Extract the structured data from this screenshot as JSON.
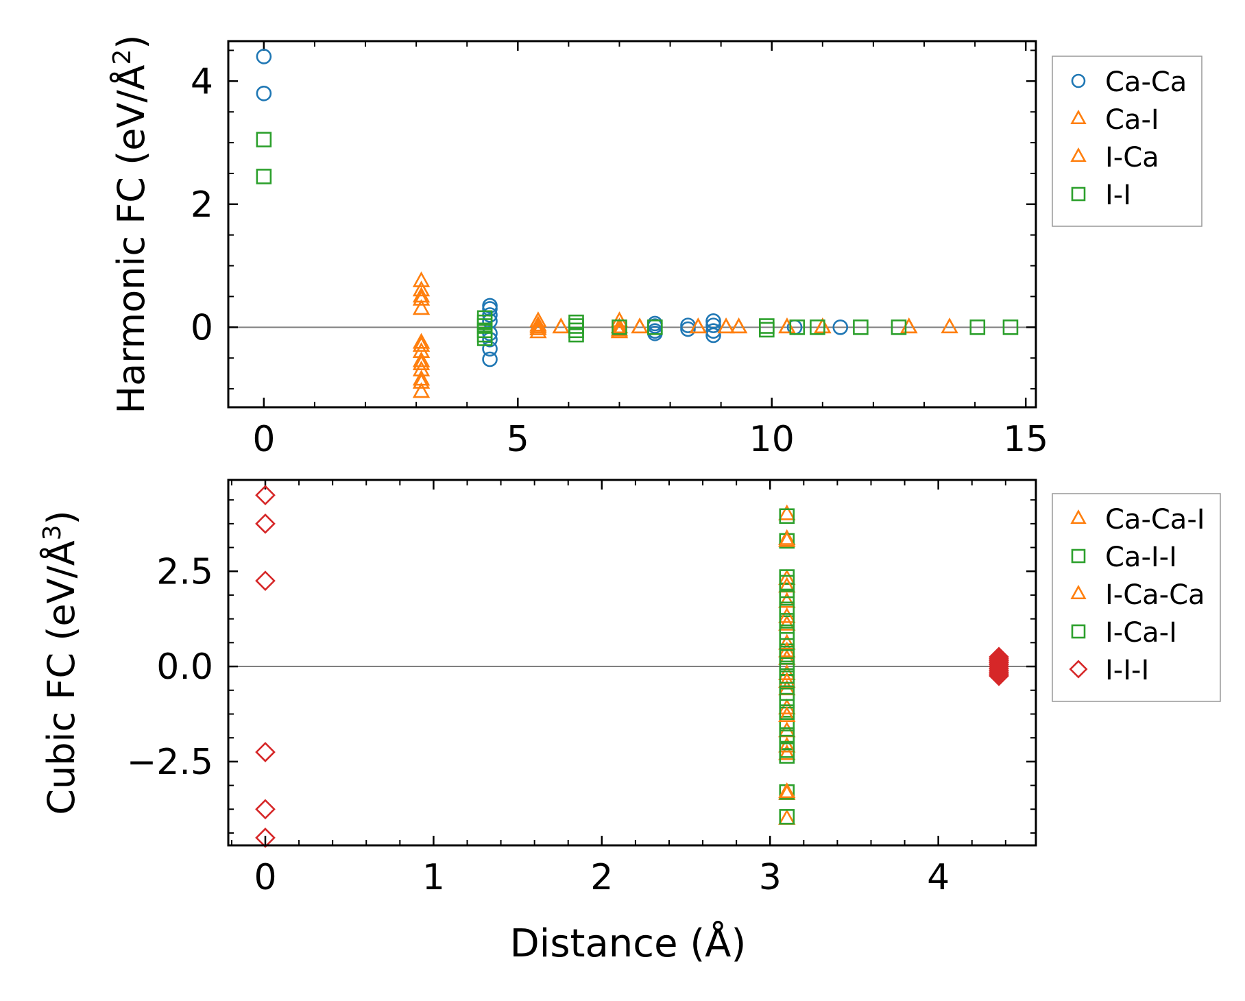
{
  "chart_data": [
    {
      "type": "scatter",
      "ylabel": "Harmonic FC (eV/Å",
      "ylabel_sup": "2",
      "ylabel_close": ")",
      "xlim": [
        -0.7,
        15.2
      ],
      "ylim": [
        -1.3,
        4.65
      ],
      "xticks": [
        0,
        5,
        10,
        15
      ],
      "xtick_labels": [
        "0",
        "5",
        "10",
        "15"
      ],
      "yticks": [
        0,
        2,
        4
      ],
      "ytick_labels": [
        "0",
        "2",
        "4"
      ],
      "hline": 0,
      "legend_position": "right, outside axes",
      "series": [
        {
          "name": "Ca-Ca",
          "marker": "circle",
          "color": "#1f77b4",
          "x": [
            0,
            0,
            4.45,
            4.45,
            4.45,
            4.45,
            4.45,
            4.45,
            4.45,
            4.45,
            7.7,
            7.7,
            7.7,
            7.7,
            8.35,
            8.35,
            8.85,
            8.85,
            8.85,
            8.85,
            10.45,
            11.35
          ],
          "y": [
            4.4,
            3.8,
            0.35,
            0.3,
            0.2,
            0.1,
            -0.1,
            -0.2,
            -0.35,
            -0.52,
            0.06,
            0.02,
            -0.06,
            -0.1,
            0.03,
            -0.03,
            0.1,
            0.03,
            -0.06,
            -0.13,
            0.0,
            0.0
          ]
        },
        {
          "name": "Ca-I",
          "marker": "triangle",
          "color": "#ff7f0e",
          "x": [
            3.1,
            3.1,
            3.1,
            3.1,
            3.1,
            3.1,
            3.1,
            3.1,
            3.1,
            3.1,
            5.4,
            5.4,
            5.4,
            5.4,
            5.85,
            7.0,
            7.0,
            7.0,
            7.4,
            8.55,
            9.1,
            9.35,
            10.3,
            11.0,
            12.7,
            13.5
          ],
          "y": [
            0.75,
            0.6,
            0.45,
            0.3,
            -0.25,
            -0.4,
            -0.55,
            -0.7,
            -0.85,
            -1.05,
            0.1,
            0.03,
            -0.03,
            -0.08,
            0.0,
            0.1,
            0.0,
            -0.08,
            0.0,
            0.0,
            0.0,
            0.0,
            0.0,
            0.0,
            0.0,
            0.0
          ]
        },
        {
          "name": "I-Ca",
          "marker": "triangle",
          "color": "#ff7f0e",
          "x": [
            3.1,
            3.1,
            3.1,
            3.1,
            5.4,
            5.85,
            7.0,
            7.4,
            8.55,
            9.1,
            9.35,
            10.3,
            11.0,
            12.7
          ],
          "y": [
            0.5,
            -0.3,
            -0.6,
            -0.9,
            0.0,
            0.0,
            -0.05,
            0.0,
            0.0,
            0.0,
            0.0,
            0.0,
            0.0,
            0.0
          ]
        },
        {
          "name": "I-I",
          "marker": "square",
          "color": "#2ca02c",
          "x": [
            0,
            0,
            4.35,
            4.35,
            4.35,
            4.35,
            4.35,
            4.35,
            6.15,
            6.15,
            6.15,
            6.15,
            7.0,
            7.7,
            9.9,
            9.9,
            10.5,
            10.9,
            11.75,
            12.5,
            14.05,
            14.7
          ],
          "y": [
            3.05,
            2.45,
            0.15,
            0.08,
            0.02,
            -0.05,
            -0.12,
            -0.18,
            0.08,
            0.02,
            -0.05,
            -0.12,
            0.0,
            0.0,
            0.02,
            -0.04,
            0.0,
            0.0,
            0.0,
            0.0,
            0.0,
            0.0
          ]
        }
      ]
    },
    {
      "type": "scatter",
      "xlabel": "Distance (Å)",
      "ylabel": "Cubic FC (eV/Å",
      "ylabel_sup": "3",
      "ylabel_close": ")",
      "xlim": [
        -0.22,
        4.58
      ],
      "ylim": [
        -4.7,
        4.9
      ],
      "xticks": [
        0,
        1,
        2,
        3,
        4
      ],
      "xtick_labels": [
        "0",
        "1",
        "2",
        "3",
        "4"
      ],
      "yticks": [
        -2.5,
        0.0,
        2.5
      ],
      "ytick_labels": [
        "−2.5",
        "0.0",
        "2.5"
      ],
      "hline": 0,
      "legend_position": "right, outside axes",
      "series": [
        {
          "name": "Ca-Ca-I",
          "marker": "triangle",
          "color": "#ff7f0e",
          "x": [
            3.1,
            3.1,
            3.1,
            3.1,
            3.1,
            3.1,
            3.1,
            3.1,
            3.1,
            3.1,
            3.1,
            3.1,
            3.1,
            3.1
          ],
          "y": [
            4.0,
            3.35,
            2.3,
            1.7,
            1.1,
            0.6,
            0.2,
            -0.2,
            -0.6,
            -1.1,
            -1.7,
            -2.3,
            -3.35,
            -4.0
          ]
        },
        {
          "name": "Ca-I-I",
          "marker": "square",
          "color": "#2ca02c",
          "x": [
            3.1,
            3.1,
            3.1,
            3.1,
            3.1,
            3.1,
            3.1,
            3.1,
            3.1,
            3.1,
            3.1,
            3.1,
            3.1,
            3.1,
            3.1,
            3.1
          ],
          "y": [
            3.95,
            3.3,
            2.35,
            2.0,
            1.5,
            0.9,
            0.4,
            0.05,
            -0.05,
            -0.4,
            -0.9,
            -1.5,
            -2.0,
            -2.35,
            -3.3,
            -3.95
          ]
        },
        {
          "name": "I-Ca-Ca",
          "marker": "triangle",
          "color": "#ff7f0e",
          "x": [
            3.1,
            3.1,
            3.1,
            3.1,
            3.1,
            3.1,
            3.1,
            3.1
          ],
          "y": [
            3.3,
            2.1,
            1.3,
            0.4,
            -0.4,
            -1.3,
            -2.1,
            -3.3
          ]
        },
        {
          "name": "I-Ca-I",
          "marker": "square",
          "color": "#2ca02c",
          "x": [
            3.1,
            3.1,
            3.1,
            3.1,
            3.1,
            3.1,
            3.1,
            3.1,
            3.1,
            3.1
          ],
          "y": [
            2.2,
            1.8,
            1.2,
            0.7,
            0.25,
            -0.25,
            -0.7,
            -1.2,
            -1.8,
            -2.2
          ]
        },
        {
          "name": "I-I-I",
          "marker": "diamond",
          "color": "#d62728",
          "x": [
            0,
            0,
            0,
            0,
            0,
            0,
            4.36,
            4.36,
            4.36,
            4.36,
            4.36,
            4.36,
            4.36,
            4.36,
            4.36,
            4.36,
            4.36
          ],
          "y": [
            4.5,
            3.75,
            2.25,
            -2.25,
            -3.75,
            -4.5,
            0.25,
            0.2,
            0.15,
            0.1,
            0.05,
            0.0,
            -0.05,
            -0.1,
            -0.15,
            -0.2,
            -0.25
          ]
        }
      ]
    }
  ]
}
